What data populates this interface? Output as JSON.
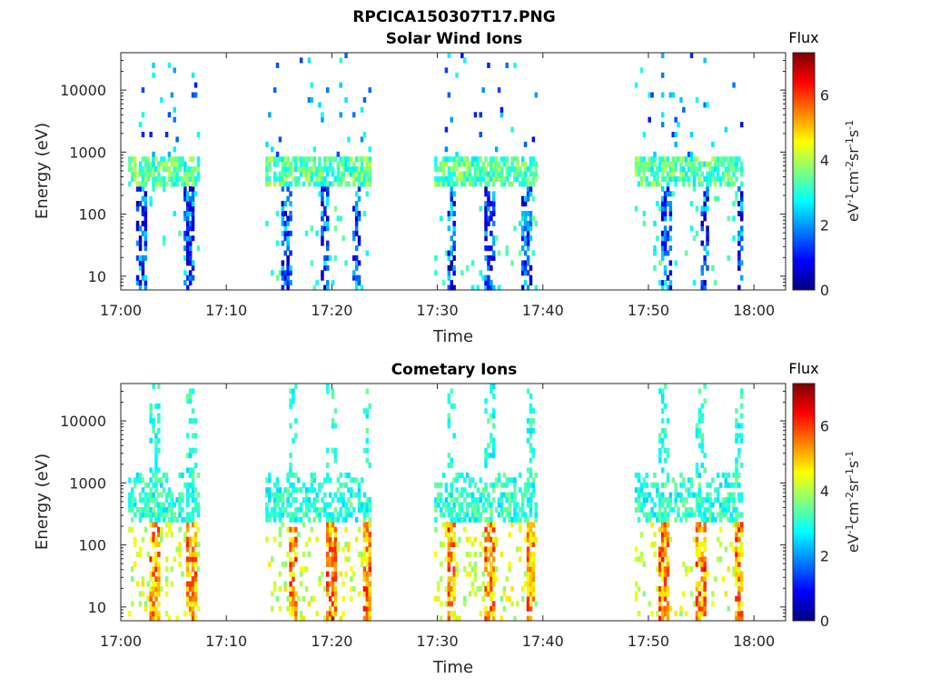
{
  "figure": {
    "title": "RPCICA150307T17.PNG"
  },
  "chart_data": [
    {
      "type": "heatmap",
      "title": "Solar Wind Ions",
      "xlabel": "Time",
      "ylabel": "Energy (eV)",
      "yscale": "log",
      "ylim": [
        6,
        40000
      ],
      "xlim": [
        "17:00",
        "18:03"
      ],
      "xticks": [
        "17:00",
        "17:10",
        "17:20",
        "17:30",
        "17:40",
        "17:50",
        "18:00"
      ],
      "yticks": [
        "10",
        "100",
        "1000",
        "10000"
      ],
      "colorbar": {
        "title": "Flux",
        "unit": "eV-1cm-2sr-1s-1",
        "range": [
          0,
          7.3
        ],
        "ticks": [
          "0",
          "2",
          "4",
          "6"
        ],
        "colormap": "jet"
      },
      "bursts": [
        {
          "start": "17:00.7",
          "end": "17:07.2",
          "sub": [
            17.03,
            17.105
          ]
        },
        {
          "start": "17:13.7",
          "end": "17:23.5",
          "sub": [
            17.26,
            17.32,
            17.37
          ]
        },
        {
          "start": "17:29.7",
          "end": "17:39.3",
          "sub": [
            17.52,
            17.58,
            17.64
          ]
        },
        {
          "start": "17:48.7",
          "end": "17:58.7",
          "sub": [
            17.86,
            17.92,
            17.98
          ]
        }
      ],
      "band_main_eV": [
        300,
        900
      ],
      "band_main_flux": 3.2,
      "band_tail_flux": 1.5
    },
    {
      "type": "heatmap",
      "title": "Cometary Ions",
      "xlabel": "Time",
      "ylabel": "Energy (eV)",
      "yscale": "log",
      "ylim": [
        6,
        40000
      ],
      "xlim": [
        "17:00",
        "18:03"
      ],
      "xticks": [
        "17:00",
        "17:10",
        "17:20",
        "17:30",
        "17:40",
        "17:50",
        "18:00"
      ],
      "yticks": [
        "10",
        "100",
        "1000",
        "10000"
      ],
      "colorbar": {
        "title": "Flux",
        "unit": "eV-1cm-2sr-1s-1",
        "range": [
          0,
          7.3
        ],
        "ticks": [
          "0",
          "2",
          "4",
          "6"
        ],
        "colormap": "jet"
      },
      "bursts": [
        {
          "start": "17:00.7",
          "end": "17:07.2",
          "sub": [
            17.05,
            17.11
          ]
        },
        {
          "start": "17:13.7",
          "end": "17:23.5",
          "sub": [
            17.27,
            17.33,
            17.39
          ]
        },
        {
          "start": "17:29.7",
          "end": "17:39.3",
          "sub": [
            17.52,
            17.58,
            17.645
          ]
        },
        {
          "start": "17:48.7",
          "end": "17:58.7",
          "sub": [
            17.855,
            17.915,
            17.975
          ]
        }
      ],
      "band_upper_eV": [
        250,
        1500
      ],
      "band_upper_flux": 2.8,
      "band_lower_flux": 5.2
    }
  ]
}
